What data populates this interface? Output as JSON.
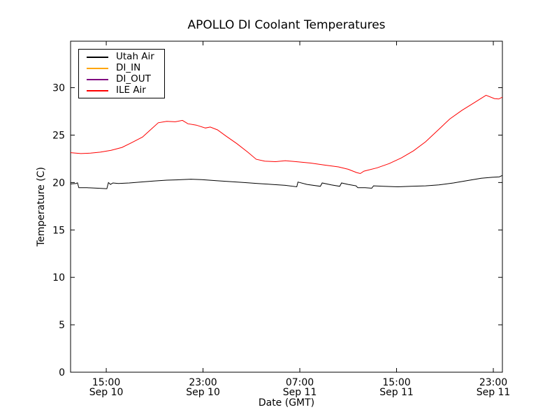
{
  "chart_data": {
    "type": "line",
    "title": "APOLLO DI Coolant Temperatures",
    "xlabel": "Date (GMT)",
    "ylabel": "Temperature (C)",
    "x_unit": "hours since Sep 10 00:00 GMT",
    "xlim": [
      12.05,
      47.75
    ],
    "ylim": [
      0,
      34.9
    ],
    "grid": false,
    "legend_position": "upper left",
    "x_ticks": [
      {
        "value": 15,
        "time": "15:00",
        "date": "Sep 10"
      },
      {
        "value": 23,
        "time": "23:00",
        "date": "Sep 10"
      },
      {
        "value": 31,
        "time": "07:00",
        "date": "Sep 11"
      },
      {
        "value": 39,
        "time": "15:00",
        "date": "Sep 11"
      },
      {
        "value": 47,
        "time": "23:00",
        "date": "Sep 11"
      }
    ],
    "y_ticks": [
      0,
      5,
      10,
      15,
      20,
      25,
      30
    ],
    "series": [
      {
        "name": "Utah Air",
        "color": "#000000",
        "visible_in_plot": true,
        "points": [
          [
            12.05,
            19.85
          ],
          [
            12.5,
            19.9
          ],
          [
            12.62,
            19.97
          ],
          [
            12.73,
            19.45
          ],
          [
            13.4,
            19.45
          ],
          [
            14.3,
            19.4
          ],
          [
            15.05,
            19.35
          ],
          [
            15.18,
            20.0
          ],
          [
            15.35,
            19.8
          ],
          [
            15.55,
            19.95
          ],
          [
            16.0,
            19.9
          ],
          [
            16.9,
            19.95
          ],
          [
            17.8,
            20.05
          ],
          [
            18.9,
            20.15
          ],
          [
            20.0,
            20.25
          ],
          [
            21.2,
            20.3
          ],
          [
            22.0,
            20.35
          ],
          [
            22.9,
            20.3
          ],
          [
            24.1,
            20.2
          ],
          [
            25.2,
            20.1
          ],
          [
            26.4,
            20.0
          ],
          [
            27.5,
            19.9
          ],
          [
            28.7,
            19.8
          ],
          [
            29.8,
            19.7
          ],
          [
            30.75,
            19.55
          ],
          [
            30.85,
            20.05
          ],
          [
            31.6,
            19.8
          ],
          [
            32.7,
            19.6
          ],
          [
            32.85,
            19.95
          ],
          [
            33.6,
            19.75
          ],
          [
            34.3,
            19.6
          ],
          [
            34.45,
            19.95
          ],
          [
            35.0,
            19.8
          ],
          [
            35.65,
            19.65
          ],
          [
            35.8,
            19.45
          ],
          [
            36.4,
            19.45
          ],
          [
            36.95,
            19.4
          ],
          [
            37.1,
            19.65
          ],
          [
            37.9,
            19.6
          ],
          [
            39.1,
            19.55
          ],
          [
            40.2,
            19.6
          ],
          [
            41.4,
            19.65
          ],
          [
            42.5,
            19.75
          ],
          [
            43.7,
            19.95
          ],
          [
            44.8,
            20.2
          ],
          [
            46.0,
            20.45
          ],
          [
            46.9,
            20.55
          ],
          [
            47.5,
            20.6
          ],
          [
            47.75,
            20.75
          ]
        ]
      },
      {
        "name": "DI_IN",
        "color": "#ffa500",
        "visible_in_plot": false,
        "points": []
      },
      {
        "name": "DI_OUT",
        "color": "#800080",
        "visible_in_plot": false,
        "points": []
      },
      {
        "name": "ILE Air",
        "color": "#ff0000",
        "visible_in_plot": true,
        "points": [
          [
            12.05,
            23.15
          ],
          [
            12.9,
            23.05
          ],
          [
            13.7,
            23.1
          ],
          [
            14.5,
            23.2
          ],
          [
            15.4,
            23.4
          ],
          [
            16.3,
            23.7
          ],
          [
            17.1,
            24.2
          ],
          [
            18.0,
            24.8
          ],
          [
            18.6,
            25.5
          ],
          [
            19.3,
            26.3
          ],
          [
            20.0,
            26.45
          ],
          [
            20.7,
            26.4
          ],
          [
            21.3,
            26.55
          ],
          [
            21.75,
            26.2
          ],
          [
            22.45,
            26.05
          ],
          [
            23.2,
            25.75
          ],
          [
            23.6,
            25.85
          ],
          [
            24.2,
            25.55
          ],
          [
            24.9,
            24.9
          ],
          [
            25.8,
            24.1
          ],
          [
            26.7,
            23.2
          ],
          [
            27.4,
            22.45
          ],
          [
            28.1,
            22.25
          ],
          [
            29.0,
            22.2
          ],
          [
            29.8,
            22.3
          ],
          [
            30.7,
            22.2
          ],
          [
            31.9,
            22.05
          ],
          [
            33.0,
            21.85
          ],
          [
            34.2,
            21.65
          ],
          [
            35.0,
            21.4
          ],
          [
            35.7,
            21.05
          ],
          [
            36.0,
            20.95
          ],
          [
            36.3,
            21.2
          ],
          [
            37.4,
            21.55
          ],
          [
            38.4,
            22.0
          ],
          [
            39.4,
            22.6
          ],
          [
            40.4,
            23.35
          ],
          [
            41.4,
            24.3
          ],
          [
            42.4,
            25.5
          ],
          [
            43.4,
            26.7
          ],
          [
            44.4,
            27.6
          ],
          [
            45.4,
            28.4
          ],
          [
            46.4,
            29.2
          ],
          [
            47.1,
            28.85
          ],
          [
            47.45,
            28.8
          ],
          [
            47.75,
            29.0
          ]
        ]
      }
    ]
  }
}
